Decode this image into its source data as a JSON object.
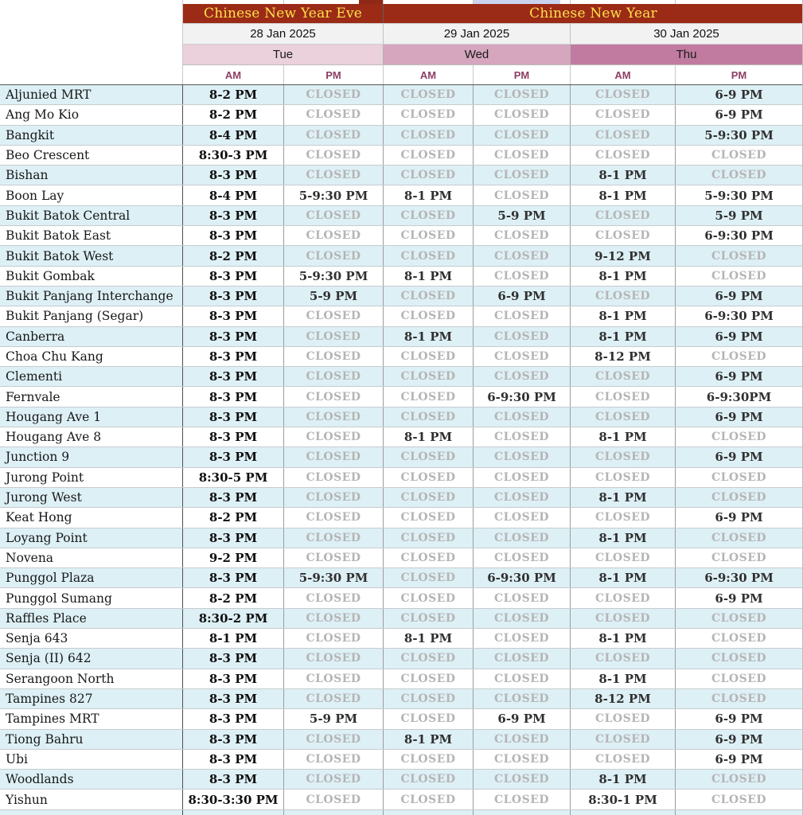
{
  "table": {
    "banners": [
      {
        "label": "Chinese New Year Eve"
      },
      {
        "label": "Chinese New Year"
      }
    ],
    "dates": [
      {
        "label": "28 Jan 2025"
      },
      {
        "label": "29 Jan 2025"
      },
      {
        "label": "30 Jan 2025"
      }
    ],
    "days": [
      {
        "label": "Tue",
        "bg": "#ead1dc"
      },
      {
        "label": "Wed",
        "bg": "#d5a6bd"
      },
      {
        "label": "Thu",
        "bg": "#c17ba0"
      }
    ],
    "periods": [
      {
        "label": "AM"
      },
      {
        "label": "PM"
      },
      {
        "label": "AM"
      },
      {
        "label": "PM"
      },
      {
        "label": "AM"
      },
      {
        "label": "PM"
      }
    ],
    "closed_label": "CLOSED",
    "colors": {
      "banner_bg": "#9b2b16",
      "banner_text": "#ffe14d",
      "date_bg": "#f2f2f2",
      "day_tue_bg": "#ead1dc",
      "day_wed_bg": "#d5a6bd",
      "day_thu_bg": "#c17ba0",
      "ampm_text": "#8d3f63",
      "row_alt_bg": "#ddf0f6",
      "closed_text": "#b5b5b5",
      "time_text": "#0e0e0e"
    },
    "rows": [
      {
        "location": "Aljunied MRT",
        "hours": [
          "8-2 PM",
          "CLOSED",
          "CLOSED",
          "CLOSED",
          "CLOSED",
          "6-9 PM"
        ]
      },
      {
        "location": "Ang Mo Kio",
        "hours": [
          "8-2 PM",
          "CLOSED",
          "CLOSED",
          "CLOSED",
          "CLOSED",
          "6-9 PM"
        ]
      },
      {
        "location": "Bangkit",
        "hours": [
          "8-4 PM",
          "CLOSED",
          "CLOSED",
          "CLOSED",
          "CLOSED",
          "5-9:30 PM"
        ]
      },
      {
        "location": "Beo Crescent",
        "hours": [
          "8:30-3 PM",
          "CLOSED",
          "CLOSED",
          "CLOSED",
          "CLOSED",
          "CLOSED"
        ]
      },
      {
        "location": "Bishan",
        "hours": [
          "8-3 PM",
          "CLOSED",
          "CLOSED",
          "CLOSED",
          "8-1 PM",
          "CLOSED"
        ]
      },
      {
        "location": "Boon Lay",
        "hours": [
          "8-4 PM",
          "5-9:30 PM",
          "8-1 PM",
          "CLOSED",
          "8-1 PM",
          "5-9:30 PM"
        ]
      },
      {
        "location": "Bukit Batok Central",
        "hours": [
          "8-3 PM",
          "CLOSED",
          "CLOSED",
          "5-9 PM",
          "CLOSED",
          "5-9 PM"
        ]
      },
      {
        "location": "Bukit Batok East",
        "hours": [
          "8-3 PM",
          "CLOSED",
          "CLOSED",
          "CLOSED",
          "CLOSED",
          "6-9:30 PM"
        ]
      },
      {
        "location": "Bukit Batok West",
        "hours": [
          "8-2 PM",
          "CLOSED",
          "CLOSED",
          "CLOSED",
          "9-12 PM",
          "CLOSED"
        ]
      },
      {
        "location": "Bukit Gombak",
        "hours": [
          "8-3 PM",
          "5-9:30 PM",
          "8-1 PM",
          "CLOSED",
          "8-1 PM",
          "CLOSED"
        ]
      },
      {
        "location": "Bukit Panjang Interchange",
        "hours": [
          "8-3 PM",
          "5-9 PM",
          "CLOSED",
          "6-9 PM",
          "CLOSED",
          "6-9 PM"
        ]
      },
      {
        "location": "Bukit Panjang (Segar)",
        "hours": [
          "8-3 PM",
          "CLOSED",
          "CLOSED",
          "CLOSED",
          "8-1 PM",
          "6-9:30 PM"
        ]
      },
      {
        "location": "Canberra",
        "hours": [
          "8-3 PM",
          "CLOSED",
          "8-1 PM",
          "CLOSED",
          "8-1 PM",
          "6-9 PM"
        ]
      },
      {
        "location": "Choa Chu Kang",
        "hours": [
          "8-3 PM",
          "CLOSED",
          "CLOSED",
          "CLOSED",
          "8-12 PM",
          "CLOSED"
        ]
      },
      {
        "location": "Clementi",
        "hours": [
          "8-3 PM",
          "CLOSED",
          "CLOSED",
          "CLOSED",
          "CLOSED",
          "6-9 PM"
        ]
      },
      {
        "location": "Fernvale",
        "hours": [
          "8-3 PM",
          "CLOSED",
          "CLOSED",
          "6-9:30 PM",
          "CLOSED",
          "6-9:30PM"
        ]
      },
      {
        "location": "Hougang Ave 1",
        "hours": [
          "8-3 PM",
          "CLOSED",
          "CLOSED",
          "CLOSED",
          "CLOSED",
          "6-9 PM"
        ]
      },
      {
        "location": "Hougang Ave 8",
        "hours": [
          "8-3 PM",
          "CLOSED",
          "8-1 PM",
          "CLOSED",
          "8-1 PM",
          "CLOSED"
        ]
      },
      {
        "location": "Junction 9",
        "hours": [
          "8-3 PM",
          "CLOSED",
          "CLOSED",
          "CLOSED",
          "CLOSED",
          "6-9 PM"
        ]
      },
      {
        "location": "Jurong Point",
        "hours": [
          "8:30-5 PM",
          "CLOSED",
          "CLOSED",
          "CLOSED",
          "CLOSED",
          "CLOSED"
        ]
      },
      {
        "location": "Jurong West",
        "hours": [
          "8-3 PM",
          "CLOSED",
          "CLOSED",
          "CLOSED",
          "8-1 PM",
          "CLOSED"
        ]
      },
      {
        "location": "Keat Hong",
        "hours": [
          "8-2 PM",
          "CLOSED",
          "CLOSED",
          "CLOSED",
          "CLOSED",
          "6-9 PM"
        ]
      },
      {
        "location": "Loyang Point",
        "hours": [
          "8-3 PM",
          "CLOSED",
          "CLOSED",
          "CLOSED",
          "8-1 PM",
          "CLOSED"
        ]
      },
      {
        "location": "Novena",
        "hours": [
          "9-2 PM",
          "CLOSED",
          "CLOSED",
          "CLOSED",
          "CLOSED",
          "CLOSED"
        ]
      },
      {
        "location": "Punggol Plaza",
        "hours": [
          "8-3 PM",
          "5-9:30 PM",
          "CLOSED",
          "6-9:30 PM",
          "8-1 PM",
          "6-9:30 PM"
        ]
      },
      {
        "location": "Punggol Sumang",
        "hours": [
          "8-2 PM",
          "CLOSED",
          "CLOSED",
          "CLOSED",
          "CLOSED",
          "6-9 PM"
        ]
      },
      {
        "location": "Raffles Place",
        "hours": [
          "8:30-2 PM",
          "CLOSED",
          "CLOSED",
          "CLOSED",
          "CLOSED",
          "CLOSED"
        ]
      },
      {
        "location": "Senja 643",
        "hours": [
          "8-1 PM",
          "CLOSED",
          "8-1 PM",
          "CLOSED",
          "8-1 PM",
          "CLOSED"
        ]
      },
      {
        "location": "Senja (II) 642",
        "hours": [
          "8-3 PM",
          "CLOSED",
          "CLOSED",
          "CLOSED",
          "CLOSED",
          "CLOSED"
        ]
      },
      {
        "location": "Serangoon North",
        "hours": [
          "8-3 PM",
          "CLOSED",
          "CLOSED",
          "CLOSED",
          "8-1 PM",
          "CLOSED"
        ]
      },
      {
        "location": "Tampines 827",
        "hours": [
          "8-3 PM",
          "CLOSED",
          "CLOSED",
          "CLOSED",
          "8-12 PM",
          "CLOSED"
        ]
      },
      {
        "location": "Tampines MRT",
        "hours": [
          "8-3 PM",
          "5-9 PM",
          "CLOSED",
          "6-9 PM",
          "CLOSED",
          "6-9 PM"
        ]
      },
      {
        "location": "Tiong Bahru",
        "hours": [
          "8-3 PM",
          "CLOSED",
          "8-1 PM",
          "CLOSED",
          "CLOSED",
          "6-9 PM"
        ]
      },
      {
        "location": "Ubi",
        "hours": [
          "8-3 PM",
          "CLOSED",
          "CLOSED",
          "CLOSED",
          "CLOSED",
          "6-9 PM"
        ]
      },
      {
        "location": "Woodlands",
        "hours": [
          "8-3 PM",
          "CLOSED",
          "CLOSED",
          "CLOSED",
          "8-1 PM",
          "CLOSED"
        ]
      },
      {
        "location": "Yishun",
        "hours": [
          "8:30-3:30 PM",
          "CLOSED",
          "CLOSED",
          "CLOSED",
          "8:30-1 PM",
          "CLOSED"
        ]
      }
    ]
  }
}
